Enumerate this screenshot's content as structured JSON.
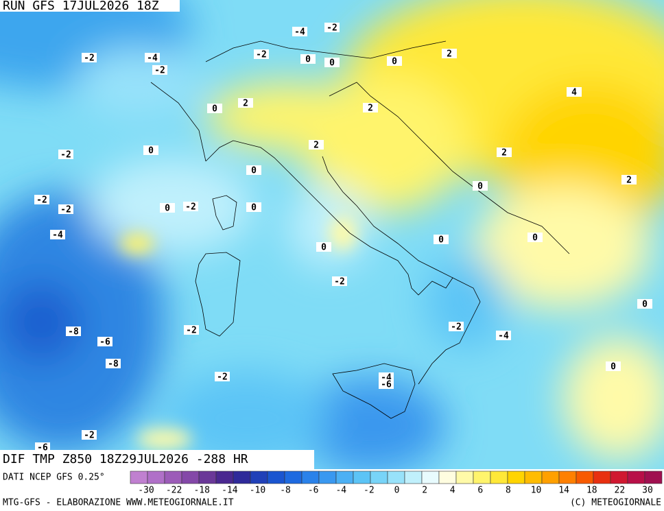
{
  "header": {
    "run": "RUN GFS 17JUL2026 18Z"
  },
  "map": {
    "labels": [
      -2,
      -4,
      -2,
      -4,
      -2,
      -2,
      0,
      0,
      0,
      2,
      4,
      0,
      2,
      2,
      -2,
      0,
      2,
      2,
      0,
      0,
      2,
      -2,
      -2,
      0,
      -2,
      0,
      -4,
      0,
      0,
      0,
      -2,
      0,
      -8,
      -6,
      -2,
      -2,
      -4,
      -8,
      0,
      -2,
      -4,
      -6,
      -2,
      -6
    ]
  },
  "footer": {
    "title": "DIF TMP Z850 18Z29JUL2026 -288 HR",
    "source": "DATI NCEP GFS 0.25°",
    "credit": "MTG-GFS - ELABORAZIONE WWW.METEOGIORNALE.IT",
    "copyright": "(C) METEOGIORNALE"
  },
  "legend": {
    "ticks": [
      -30,
      -22,
      -18,
      -14,
      -10,
      -8,
      -6,
      -4,
      -2,
      0,
      2,
      4,
      6,
      8,
      10,
      14,
      18,
      22,
      30
    ],
    "colors": [
      "#c080d0",
      "#b070c8",
      "#9c5cb8",
      "#8448a8",
      "#6a3898",
      "#4a2890",
      "#2f2a9a",
      "#2040b8",
      "#1a55d0",
      "#1e6ae0",
      "#2a82ea",
      "#3a98f0",
      "#4cb0f4",
      "#5cc4f6",
      "#78d4f8",
      "#98e2fa",
      "#c0f0fc",
      "#e8fbfe",
      "#fffde0",
      "#fffaa8",
      "#fff46c",
      "#ffe838",
      "#ffd400",
      "#ffbc00",
      "#ffa000",
      "#ff8000",
      "#f85a00",
      "#e83010",
      "#d01830",
      "#b81048",
      "#a01050"
    ]
  }
}
